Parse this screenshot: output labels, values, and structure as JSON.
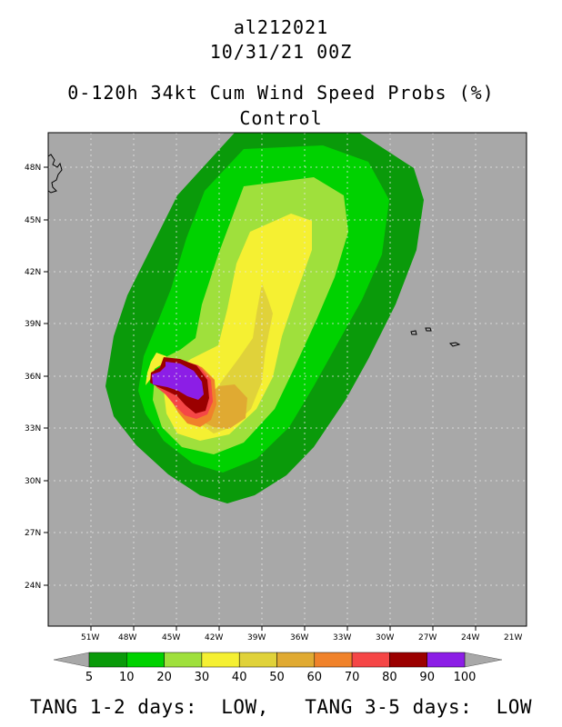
{
  "header": {
    "storm_id": "al212021",
    "datetime": "10/31/21 00Z",
    "product": "0-120h 34kt Cum Wind Speed Probs (%)",
    "run": "Control"
  },
  "chart_data": {
    "type": "heatmap",
    "title": "0-120h 34kt Cum Wind Speed Probs (%)",
    "units": "%",
    "lon_ticks": [
      "51W",
      "48W",
      "45W",
      "42W",
      "39W",
      "36W",
      "33W",
      "30W",
      "27W",
      "24W",
      "21W"
    ],
    "lat_ticks": [
      "48N",
      "45N",
      "42N",
      "39N",
      "36N",
      "33N",
      "30N",
      "27N",
      "24N"
    ],
    "colorbar": {
      "labels": [
        "5",
        "10",
        "20",
        "30",
        "40",
        "50",
        "60",
        "70",
        "80",
        "90",
        "100"
      ],
      "colors": [
        "#0a9a0a",
        "#00d200",
        "#9fe03c",
        "#f5f032",
        "#e0d23a",
        "#e0aa32",
        "#f0822a",
        "#f54646",
        "#9b0000",
        "#8c1ee6"
      ]
    },
    "max_probability_region": "36N 45W-42W (90-100%)"
  },
  "colors": {
    "ocean": "#a8a8a8",
    "border": "#000000"
  },
  "footer": {
    "text": "TANG 1-2 days:  LOW,   TANG 3-5 days:  LOW"
  }
}
